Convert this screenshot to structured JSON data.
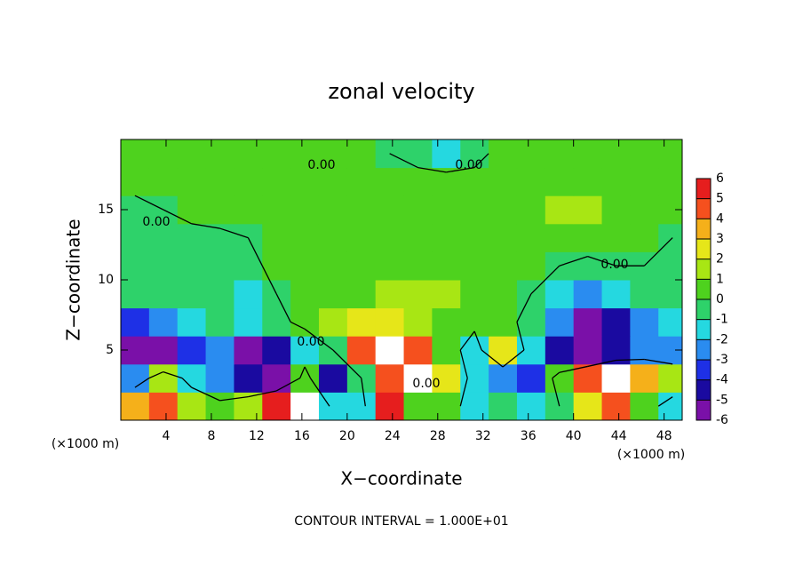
{
  "chart_data": {
    "type": "contour",
    "title": "zonal velocity",
    "x_label": "X−coordinate",
    "y_label": "Z−coordinate",
    "x_unit_label": "(×1000 m)",
    "y_unit_label": "(×1000 m)",
    "footer": "CONTOUR INTERVAL = 1.000E+01",
    "xlim": [
      0,
      49.6
    ],
    "ylim": [
      0,
      20
    ],
    "xticks": [
      4,
      8,
      12,
      16,
      20,
      24,
      28,
      32,
      36,
      40,
      44,
      48
    ],
    "yticks": [
      5,
      10,
      15
    ],
    "x": [
      1.25,
      3.75,
      6.25,
      8.75,
      11.25,
      13.75,
      16.25,
      18.75,
      21.25,
      23.75,
      26.25,
      28.75,
      31.25,
      33.75,
      36.25,
      38.75,
      41.25,
      43.75,
      46.25,
      48.75
    ],
    "z": [
      1,
      3,
      5,
      7,
      9,
      11,
      13,
      15,
      17,
      19
    ],
    "values": [
      [
        4,
        5,
        2,
        0.5,
        2,
        6,
        7,
        -1,
        -1,
        6,
        1,
        1,
        -1,
        -0.5,
        -1,
        0,
        3,
        5,
        1,
        -1
      ],
      [
        -2,
        2,
        -1,
        -2,
        -4,
        -5,
        1,
        -4,
        0,
        5,
        7,
        3,
        -1,
        -2,
        -3,
        1,
        5,
        7,
        4,
        2
      ],
      [
        -5,
        -7,
        -3,
        -2,
        -7,
        -4,
        -1.5,
        0,
        5,
        7,
        5,
        1,
        -1,
        3,
        -1,
        -4,
        -7,
        -4,
        -2,
        -2
      ],
      [
        -3,
        -2.5,
        -1,
        -0.5,
        -1,
        -0.5,
        0.5,
        1.5,
        3,
        2.5,
        1.5,
        1,
        0.5,
        0.5,
        -0.5,
        -2,
        -5,
        -4,
        -2,
        -1
      ],
      [
        -0.5,
        -0.5,
        -0.5,
        -0.5,
        -1,
        0,
        0.5,
        0.5,
        1,
        1.5,
        2,
        1.5,
        1,
        0.5,
        0,
        -1,
        -2,
        -1,
        -0.5,
        -0.5
      ],
      [
        -0.5,
        -0.5,
        -0.5,
        -0.5,
        -0.5,
        0.5,
        0.5,
        0.5,
        0.5,
        1,
        1,
        0.5,
        0.5,
        0.5,
        0.5,
        0,
        -0.5,
        0,
        0,
        0
      ],
      [
        -0.5,
        -0.5,
        -0.5,
        -0.5,
        0,
        0.5,
        0.5,
        0.5,
        0.5,
        0.5,
        0.5,
        0.5,
        0.5,
        0.5,
        1,
        1,
        1,
        0.5,
        0.5,
        0
      ],
      [
        -0.5,
        0,
        0.5,
        1,
        1,
        0.5,
        0.5,
        0.5,
        0.5,
        0.5,
        0.5,
        0.5,
        1,
        1,
        1,
        1.5,
        1.5,
        1,
        0.5,
        0.5
      ],
      [
        0.5,
        0.5,
        1,
        1,
        0.5,
        0.5,
        0.5,
        0.5,
        0.5,
        0.5,
        0.5,
        0.5,
        0.5,
        0.5,
        0.5,
        0.5,
        1,
        1,
        0.5,
        0.5
      ],
      [
        0.5,
        0.5,
        0.5,
        0.5,
        0.5,
        0.5,
        0.5,
        0.5,
        0.5,
        0,
        -0.5,
        -1,
        -0.5,
        0.5,
        0.5,
        0.5,
        0.5,
        0.5,
        0.5,
        0.5
      ]
    ],
    "contour_level": 0,
    "contour_label": "0.00",
    "colorbar_ticks": [
      -6,
      -5,
      -4,
      -3,
      -2,
      -1,
      0,
      1,
      2,
      3,
      4,
      5,
      6
    ],
    "colorbar_colors": [
      "#7a10a8",
      "#1a0aa0",
      "#1e30e6",
      "#2a8cf0",
      "#25d8e0",
      "#2ed26a",
      "#4ed21e",
      "#a8e614",
      "#e6e619",
      "#f5b01a",
      "#f5501e",
      "#e61e1e",
      "#f0a0a0"
    ],
    "over_color": "#ffffff"
  }
}
